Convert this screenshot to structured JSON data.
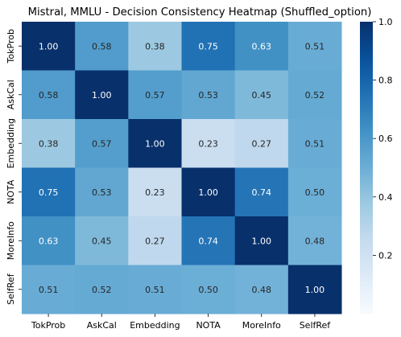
{
  "chart_data": {
    "type": "heatmap",
    "title": "Mistral, MMLU - Decision Consistency Heatmap (Shuffled_option)",
    "x_labels": [
      "TokProb",
      "AskCal",
      "Embedding",
      "NOTA",
      "MoreInfo",
      "SelfRef"
    ],
    "y_labels": [
      "TokProb",
      "AskCal",
      "Embedding",
      "NOTA",
      "MoreInfo",
      "SelfRef"
    ],
    "values": [
      [
        1.0,
        0.58,
        0.38,
        0.75,
        0.63,
        0.51
      ],
      [
        0.58,
        1.0,
        0.57,
        0.53,
        0.45,
        0.52
      ],
      [
        0.38,
        0.57,
        1.0,
        0.23,
        0.27,
        0.51
      ],
      [
        0.75,
        0.53,
        0.23,
        1.0,
        0.74,
        0.5
      ],
      [
        0.63,
        0.45,
        0.27,
        0.74,
        1.0,
        0.48
      ],
      [
        0.51,
        0.52,
        0.51,
        0.5,
        0.48,
        1.0
      ]
    ],
    "value_range": [
      0.0,
      1.0
    ],
    "colorbar_ticks": [
      "0.2",
      "0.4",
      "0.6",
      "0.8",
      "1.0"
    ],
    "colormap": "Blues",
    "grid": false,
    "legend": "colorbar-right"
  }
}
